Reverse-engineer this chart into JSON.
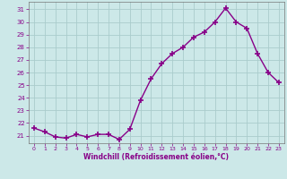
{
  "x": [
    0,
    1,
    2,
    3,
    4,
    5,
    6,
    7,
    8,
    9,
    10,
    11,
    12,
    13,
    14,
    15,
    16,
    17,
    18,
    19,
    20,
    21,
    22,
    23
  ],
  "y": [
    21.6,
    21.3,
    20.9,
    20.8,
    21.1,
    20.9,
    21.1,
    21.1,
    20.7,
    21.5,
    23.8,
    25.5,
    26.7,
    27.5,
    28.0,
    28.8,
    29.2,
    30.0,
    31.1,
    30.0,
    29.5,
    27.5,
    26.0,
    25.2
  ],
  "line_color": "#880088",
  "marker": "+",
  "marker_size": 4,
  "marker_lw": 1.2,
  "line_width": 1.0,
  "bg_color": "#cce8e8",
  "grid_color": "#aacccc",
  "xlabel": "Windchill (Refroidissement éolien,°C)",
  "xlabel_color": "#880088",
  "tick_color": "#880088",
  "yticks": [
    21,
    22,
    23,
    24,
    25,
    26,
    27,
    28,
    29,
    30,
    31
  ],
  "xticks": [
    0,
    1,
    2,
    3,
    4,
    5,
    6,
    7,
    8,
    9,
    10,
    11,
    12,
    13,
    14,
    15,
    16,
    17,
    18,
    19,
    20,
    21,
    22,
    23
  ],
  "ylim": [
    20.4,
    31.6
  ],
  "xlim": [
    -0.5,
    23.5
  ],
  "figsize": [
    3.2,
    2.0
  ],
  "dpi": 100
}
